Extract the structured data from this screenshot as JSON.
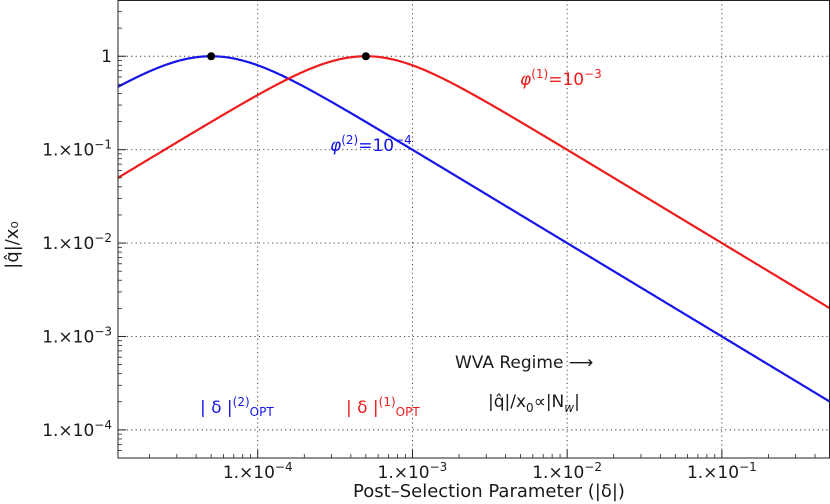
{
  "chart_data": {
    "type": "line",
    "xlabel": "Post–Selection Parameter (|δ|)",
    "ylabel": "|q̂|/x₀",
    "x_scale": "log",
    "y_scale": "log",
    "xlim": [
      1.25e-05,
      0.5
    ],
    "ylim": [
      5e-05,
      4
    ],
    "grid": true,
    "x_ticks": [
      {
        "value": 0.0001,
        "base": "1.×10",
        "exp": "−4"
      },
      {
        "value": 0.001,
        "base": "1.×10",
        "exp": "−3"
      },
      {
        "value": 0.01,
        "base": "1.×10",
        "exp": "−2"
      },
      {
        "value": 0.1,
        "base": "1.×10",
        "exp": "−1"
      }
    ],
    "y_ticks": [
      {
        "value": 1,
        "base": "1",
        "exp": ""
      },
      {
        "value": 0.1,
        "base": "1.×10",
        "exp": "−1"
      },
      {
        "value": 0.01,
        "base": "1.×10",
        "exp": "−2"
      },
      {
        "value": 0.001,
        "base": "1.×10",
        "exp": "−3"
      },
      {
        "value": 0.0001,
        "base": "1.×10",
        "exp": "−4"
      }
    ],
    "series": [
      {
        "phi": 0.0001,
        "color": "#1515e8",
        "optimum_x": 5e-05,
        "peak_y": 1
      },
      {
        "phi": 0.001,
        "color": "#ee1c1c",
        "optimum_x": 0.0005,
        "peak_y": 1
      }
    ],
    "annotations": {
      "phi1": {
        "sym": "φ",
        "sup": "(1)",
        "eq": "=10",
        "exp": "−3",
        "color": "#ee1c1c"
      },
      "phi2": {
        "sym": "φ",
        "sup": "(2)",
        "eq": "=10",
        "exp": "−4",
        "color": "#1515e8"
      },
      "delta2": {
        "text": "| δ |",
        "sup": "(2)",
        "sub": "OPT",
        "color": "#1515e8"
      },
      "delta1": {
        "text": "| δ |",
        "sup": "(1)",
        "sub": "OPT",
        "color": "#ee1c1c"
      },
      "wva_title": "WVA Regime ⟶",
      "wva_formula": {
        "a": "|q̂|/x",
        "sub0": "0",
        "b": "∝|N",
        "subw": "w",
        "c": "|"
      }
    }
  }
}
